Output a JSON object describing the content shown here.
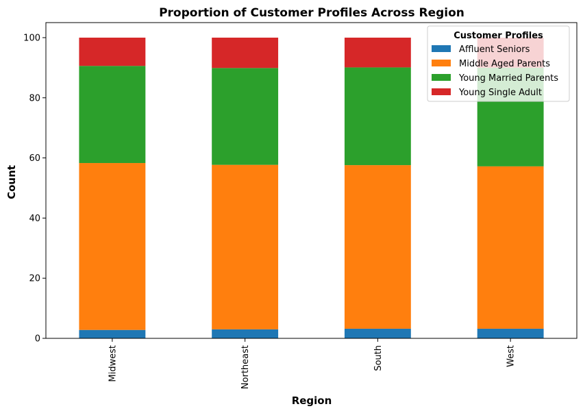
{
  "chart_data": {
    "type": "bar",
    "stacked": true,
    "title": "Proportion of Customer Profiles Across Region",
    "xlabel": "Region",
    "ylabel": "Count",
    "ylim": [
      0,
      105
    ],
    "yticks": [
      "0",
      "20",
      "40",
      "60",
      "80",
      "100"
    ],
    "categories": [
      "Midwest",
      "Northeast",
      "South",
      "West"
    ],
    "grid": false,
    "legend_title": "Customer Profiles",
    "legend_position": "top-right",
    "series": [
      {
        "name": "Affluent Seniors",
        "color": "#1f77b4",
        "values": [
          2.8,
          3.0,
          3.2,
          3.2
        ]
      },
      {
        "name": "Middle Aged Parents",
        "color": "#ff7f0e",
        "values": [
          55.5,
          54.7,
          54.4,
          54.0
        ]
      },
      {
        "name": "Young Married Parents",
        "color": "#2ca02c",
        "values": [
          32.3,
          32.2,
          32.5,
          32.8
        ]
      },
      {
        "name": "Young Single Adult",
        "color": "#d62728",
        "values": [
          9.4,
          10.1,
          9.9,
          10.0
        ]
      }
    ]
  }
}
